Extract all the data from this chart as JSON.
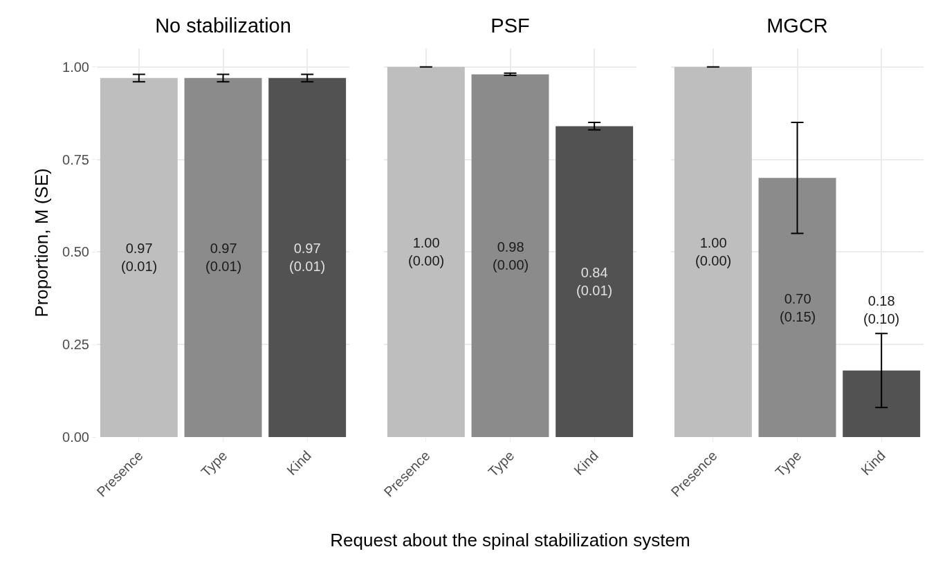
{
  "chart_data": [
    {
      "type": "bar",
      "title": "No stabilization",
      "ylabel": "Proportion, M (SE)",
      "categories": [
        "Presence",
        "Type",
        "Kind"
      ],
      "values": [
        0.97,
        0.97,
        0.97
      ],
      "errors": [
        0.01,
        0.01,
        0.01
      ],
      "colors": [
        "#bebebe",
        "#8b8b8b",
        "#525252"
      ],
      "value_labels": [
        "0.97\n(0.01)",
        "0.97\n(0.01)",
        "0.97\n(0.01)"
      ],
      "ylim": [
        0,
        1.05
      ],
      "yticks": [
        {
          "value": 0,
          "label": "0.00"
        },
        {
          "value": 0.25,
          "label": "0.25"
        },
        {
          "value": 0.5,
          "label": "0.50"
        },
        {
          "value": 0.75,
          "label": "0.75"
        },
        {
          "value": 1,
          "label": "1.00"
        }
      ],
      "grid": true
    },
    {
      "type": "bar",
      "title": "PSF",
      "xlabel": "Request about the spinal stabilization system",
      "categories": [
        "Presence",
        "Type",
        "Kind"
      ],
      "values": [
        1.0,
        0.98,
        0.84
      ],
      "errors": [
        0.0,
        0.003,
        0.01
      ],
      "colors": [
        "#bebebe",
        "#8b8b8b",
        "#525252"
      ],
      "value_labels": [
        "1.00\n(0.00)",
        "0.98\n(0.00)",
        "0.84\n(0.01)"
      ],
      "ylim": [
        0,
        1.05
      ],
      "yticks": [
        0,
        0.25,
        0.5,
        0.75,
        1
      ],
      "tick_labels": "x",
      "grid": true
    },
    {
      "type": "bar",
      "title": "MGCR",
      "categories": [
        "Presence",
        "Type",
        "Kind"
      ],
      "values": [
        1.0,
        0.7,
        0.18
      ],
      "errors": [
        0.0,
        0.15,
        0.1
      ],
      "colors": [
        "#bebebe",
        "#8b8b8b",
        "#525252"
      ],
      "value_labels": [
        "1.00\n(0.00)",
        "0.70\n(0.15)",
        "0.18\n(0.10)"
      ],
      "ylim": [
        0,
        1.05
      ],
      "yticks": [
        0,
        0.25,
        0.5,
        0.75,
        1
      ],
      "tick_labels": "x",
      "grid": true
    }
  ]
}
